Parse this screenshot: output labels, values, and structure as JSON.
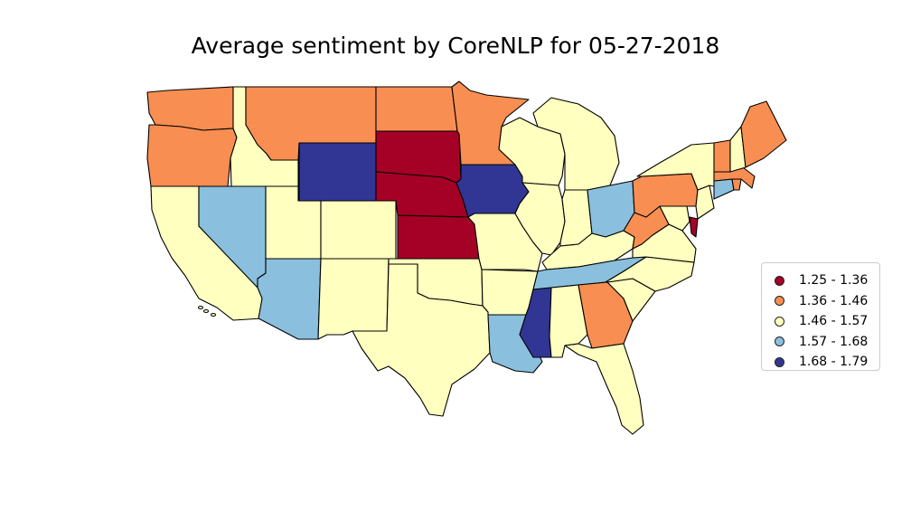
{
  "title": "Average sentiment by CoreNLP for 05-27-2018",
  "legend": [
    {
      "label": "1.25 - 1.36",
      "color": "#a50026"
    },
    {
      "label": "1.36 - 1.46",
      "color": "#f98e52"
    },
    {
      "label": "1.46 - 1.57",
      "color": "#ffffbf"
    },
    {
      "label": "1.57 - 1.68",
      "color": "#8abfdd"
    },
    {
      "label": "1.68 - 1.79",
      "color": "#313695"
    }
  ],
  "chart_data": {
    "type": "choropleth",
    "title": "Average sentiment by CoreNLP for 05-27-2018",
    "legend_placement": "right",
    "bins": [
      "1.25 - 1.36",
      "1.36 - 1.46",
      "1.46 - 1.57",
      "1.57 - 1.68",
      "1.68 - 1.79"
    ],
    "state_bins": {
      "Washington": "1.36 - 1.46",
      "Oregon": "1.36 - 1.46",
      "California": "1.46 - 1.57",
      "Idaho": "1.46 - 1.57",
      "Nevada": "1.57 - 1.68",
      "Montana": "1.36 - 1.46",
      "Wyoming": "1.68 - 1.79",
      "Utah": "1.46 - 1.57",
      "Arizona": "1.57 - 1.68",
      "Colorado": "1.46 - 1.57",
      "New Mexico": "1.46 - 1.57",
      "North Dakota": "1.36 - 1.46",
      "South Dakota": "1.25 - 1.36",
      "Nebraska": "1.25 - 1.36",
      "Kansas": "1.25 - 1.36",
      "Oklahoma": "1.46 - 1.57",
      "Texas": "1.46 - 1.57",
      "Minnesota": "1.36 - 1.46",
      "Iowa": "1.68 - 1.79",
      "Missouri": "1.46 - 1.57",
      "Arkansas": "1.46 - 1.57",
      "Louisiana": "1.57 - 1.68",
      "Wisconsin": "1.46 - 1.57",
      "Illinois": "1.46 - 1.57",
      "Michigan": "1.46 - 1.57",
      "Indiana": "1.46 - 1.57",
      "Ohio": "1.57 - 1.68",
      "Kentucky": "1.46 - 1.57",
      "Tennessee": "1.57 - 1.68",
      "Mississippi": "1.68 - 1.79",
      "Alabama": "1.46 - 1.57",
      "Georgia": "1.36 - 1.46",
      "Florida": "1.46 - 1.57",
      "South Carolina": "1.46 - 1.57",
      "North Carolina": "1.46 - 1.57",
      "Virginia": "1.46 - 1.57",
      "West Virginia": "1.36 - 1.46",
      "Maryland": "1.46 - 1.57",
      "Delaware": "1.25 - 1.36",
      "Pennsylvania": "1.36 - 1.46",
      "New Jersey": "1.46 - 1.57",
      "New York": "1.46 - 1.57",
      "Connecticut": "1.57 - 1.68",
      "Massachusetts": "1.36 - 1.46",
      "Vermont": "1.36 - 1.46",
      "New Hampshire": "1.46 - 1.57",
      "Maine": "1.36 - 1.46",
      "Rhode Island": "1.36 - 1.46"
    }
  }
}
